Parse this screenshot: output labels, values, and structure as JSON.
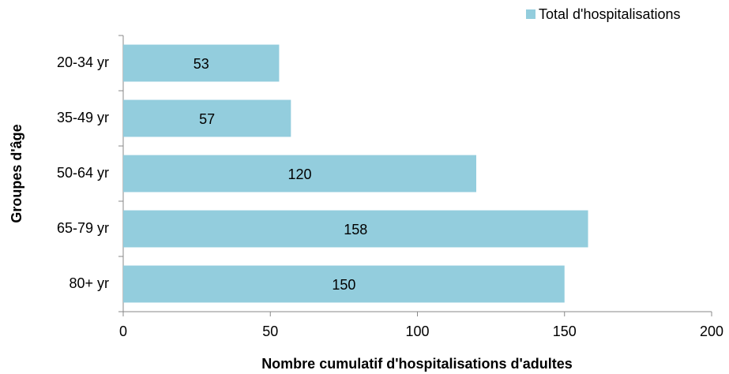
{
  "chart_data": {
    "type": "bar",
    "orientation": "horizontal",
    "x_label": "Nombre cumulatif d'hospitalisations d'adultes",
    "y_label": "Groupes d'âge",
    "categories": [
      "20-34 yr",
      "35-49 yr",
      "50-64 yr",
      "65-79 yr",
      "80+ yr"
    ],
    "series": [
      {
        "name": "Total d'hospitalisations",
        "color": "#93cddd",
        "values": [
          53,
          57,
          120,
          158,
          150
        ]
      }
    ],
    "xlim": [
      0,
      200
    ],
    "xticks": [
      0,
      50,
      100,
      150,
      200
    ],
    "grid": false,
    "legend": "top-right",
    "data_labels": true
  }
}
